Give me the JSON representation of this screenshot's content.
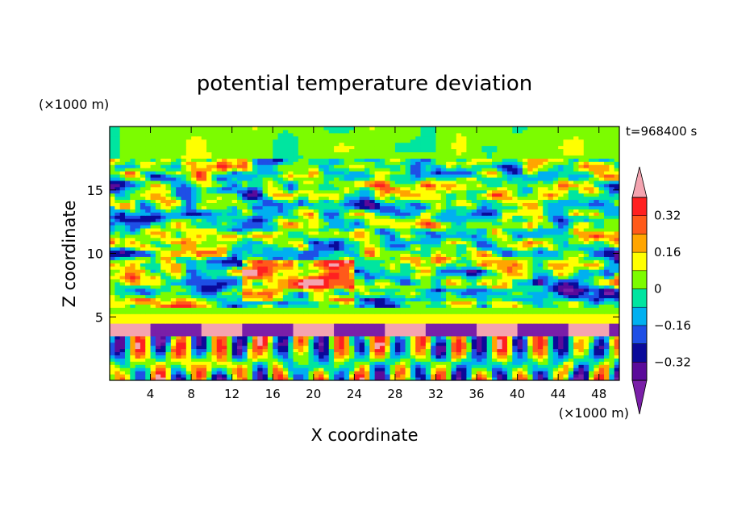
{
  "chart_data": {
    "type": "heatmap",
    "title": "potential temperature deviation",
    "xlabel": "X coordinate",
    "ylabel": "Z coordinate",
    "x_unit": "(×1000 m)",
    "y_unit": "(×1000 m)",
    "time_label": "t=968400 s",
    "xlim": [
      0,
      50
    ],
    "ylim": [
      0,
      20
    ],
    "x_ticks": [
      4,
      8,
      12,
      16,
      20,
      24,
      28,
      32,
      36,
      40,
      44,
      48
    ],
    "y_ticks": [
      5,
      10,
      15
    ],
    "colorbar": {
      "levels": [
        -0.4,
        -0.32,
        -0.24,
        -0.16,
        -0.08,
        0,
        0.08,
        0.16,
        0.24,
        0.32,
        0.4
      ],
      "labels": [
        "0.32",
        "0.16",
        "0",
        "−0.16",
        "−0.32"
      ],
      "label_values": [
        0.32,
        0.16,
        0,
        -0.16,
        -0.32
      ],
      "colors": [
        "#7a1fa8",
        "#5a0a9a",
        "#0a0a9a",
        "#1e4fe6",
        "#00b0f0",
        "#00e5a0",
        "#7cfc00",
        "#ffff00",
        "#ffa500",
        "#ff5a1a",
        "#ff2020",
        "#f4a4b0"
      ]
    }
  }
}
